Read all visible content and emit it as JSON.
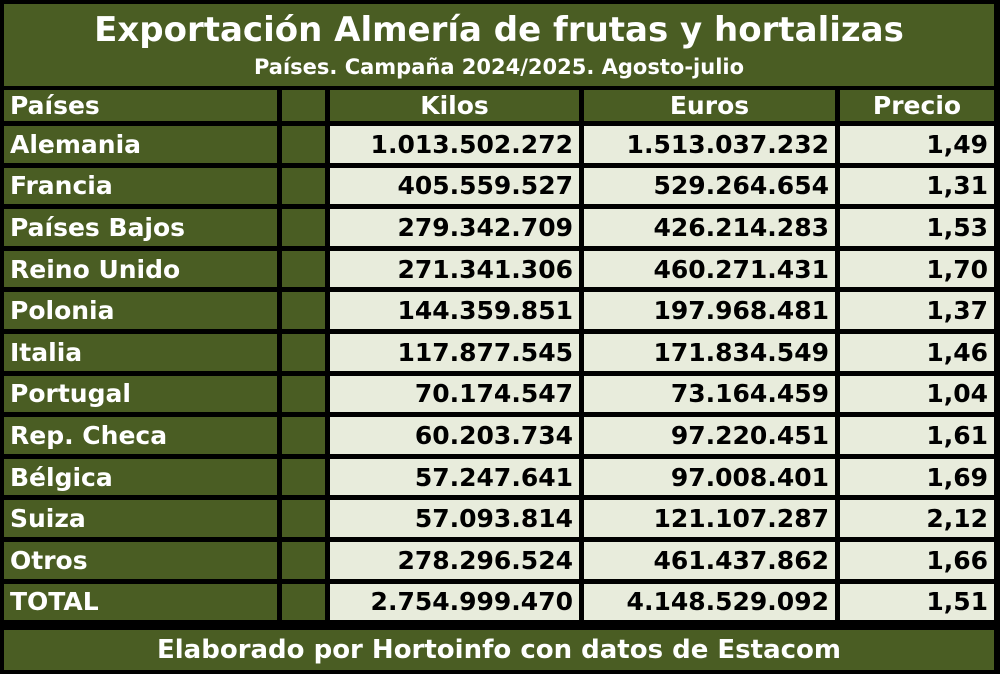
{
  "title": "Exportación Almería de frutas y hortalizas",
  "subtitle": "Países. Campaña 2024/2025. Agosto-julio",
  "columns": {
    "pais": "Países",
    "kilos": "Kilos",
    "euros": "Euros",
    "precio": "Precio"
  },
  "rows": [
    {
      "pais": "Alemania",
      "kilos": "1.013.502.272",
      "euros": "1.513.037.232",
      "precio": "1,49"
    },
    {
      "pais": "Francia",
      "kilos": "405.559.527",
      "euros": "529.264.654",
      "precio": "1,31"
    },
    {
      "pais": "Países Bajos",
      "kilos": "279.342.709",
      "euros": "426.214.283",
      "precio": "1,53"
    },
    {
      "pais": "Reino Unido",
      "kilos": "271.341.306",
      "euros": "460.271.431",
      "precio": "1,70"
    },
    {
      "pais": "Polonia",
      "kilos": "144.359.851",
      "euros": "197.968.481",
      "precio": "1,37"
    },
    {
      "pais": "Italia",
      "kilos": "117.877.545",
      "euros": "171.834.549",
      "precio": "1,46"
    },
    {
      "pais": "Portugal",
      "kilos": "70.174.547",
      "euros": "73.164.459",
      "precio": "1,04"
    },
    {
      "pais": "Rep. Checa",
      "kilos": "60.203.734",
      "euros": "97.220.451",
      "precio": "1,61"
    },
    {
      "pais": "Bélgica",
      "kilos": "57.247.641",
      "euros": "97.008.401",
      "precio": "1,69"
    },
    {
      "pais": "Suiza",
      "kilos": "57.093.814",
      "euros": "121.107.287",
      "precio": "2,12"
    },
    {
      "pais": "Otros",
      "kilos": "278.296.524",
      "euros": "461.437.862",
      "precio": "1,66"
    },
    {
      "pais": "TOTAL",
      "kilos": "2.754.999.470",
      "euros": "4.148.529.092",
      "precio": "1,51"
    }
  ],
  "footer": "Elaborado por Hortoinfo con datos de Estacom",
  "colors": {
    "header_green": "#4a5d23",
    "cell_light": "#e8ecdc",
    "grid_lines": "#000000"
  }
}
